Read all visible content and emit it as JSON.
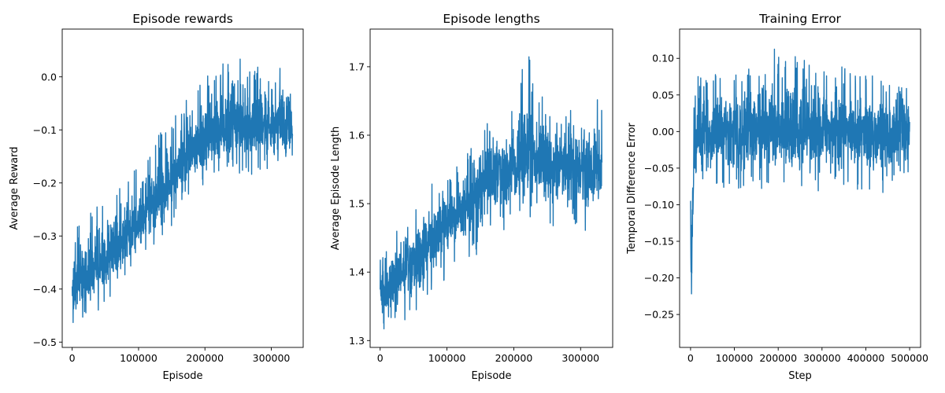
{
  "chart_data": [
    {
      "type": "line",
      "title": "Episode rewards",
      "xlabel": "Episode",
      "ylabel": "Average Reward",
      "xlim": [
        -15000,
        348000
      ],
      "ylim": [
        -0.51,
        0.09
      ],
      "xticks": [
        0,
        100000,
        200000,
        300000
      ],
      "xtick_labels": [
        "0",
        "100000",
        "200000",
        "300000"
      ],
      "yticks": [
        -0.5,
        -0.4,
        -0.3,
        -0.2,
        -0.1,
        0.0
      ],
      "ytick_labels": [
        "−0.5",
        "−0.4",
        "−0.3",
        "−0.2",
        "−0.1",
        "0.0"
      ],
      "grid": false,
      "color": "#1f77b4",
      "series": [
        {
          "x": [
            0,
            10000,
            20000,
            30000,
            40000,
            50000,
            60000,
            70000,
            80000,
            90000,
            100000,
            110000,
            120000,
            130000,
            140000,
            150000,
            160000,
            170000,
            180000,
            190000,
            200000,
            210000,
            220000,
            230000,
            240000,
            250000,
            260000,
            270000,
            280000,
            290000,
            300000,
            310000,
            320000,
            332000
          ],
          "y": [
            -0.4,
            -0.39,
            -0.38,
            -0.37,
            -0.36,
            -0.35,
            -0.33,
            -0.32,
            -0.3,
            -0.29,
            -0.28,
            -0.26,
            -0.24,
            -0.23,
            -0.21,
            -0.19,
            -0.17,
            -0.15,
            -0.14,
            -0.13,
            -0.12,
            -0.11,
            -0.1,
            -0.1,
            -0.1,
            -0.09,
            -0.09,
            -0.09,
            -0.09,
            -0.09,
            -0.09,
            -0.09,
            -0.09,
            -0.09
          ],
          "y_low": [
            -0.48,
            -0.47,
            -0.46,
            -0.45,
            -0.44,
            -0.43,
            -0.42,
            -0.41,
            -0.39,
            -0.38,
            -0.36,
            -0.34,
            -0.33,
            -0.31,
            -0.3,
            -0.28,
            -0.26,
            -0.25,
            -0.23,
            -0.22,
            -0.21,
            -0.2,
            -0.2,
            -0.2,
            -0.19,
            -0.19,
            -0.19,
            -0.19,
            -0.19,
            -0.19,
            -0.19,
            -0.19,
            -0.19,
            -0.19
          ],
          "y_high": [
            -0.29,
            -0.28,
            -0.27,
            -0.25,
            -0.24,
            -0.23,
            -0.22,
            -0.2,
            -0.19,
            -0.18,
            -0.17,
            -0.15,
            -0.13,
            -0.11,
            -0.09,
            -0.08,
            -0.06,
            -0.04,
            -0.02,
            -0.01,
            0.0,
            0.01,
            0.02,
            0.03,
            0.05,
            0.07,
            0.03,
            0.02,
            0.02,
            0.02,
            0.03,
            0.04,
            0.02,
            0.01
          ]
        }
      ]
    },
    {
      "type": "line",
      "title": "Episode lengths",
      "xlabel": "Episode",
      "ylabel": "Average Episode Length",
      "xlim": [
        -15000,
        348000
      ],
      "ylim": [
        1.29,
        1.755
      ],
      "xticks": [
        0,
        100000,
        200000,
        300000
      ],
      "xtick_labels": [
        "0",
        "100000",
        "200000",
        "300000"
      ],
      "yticks": [
        1.3,
        1.4,
        1.5,
        1.6,
        1.7
      ],
      "ytick_labels": [
        "1.3",
        "1.4",
        "1.5",
        "1.6",
        "1.7"
      ],
      "grid": false,
      "color": "#1f77b4",
      "series": [
        {
          "x": [
            0,
            10000,
            20000,
            30000,
            40000,
            50000,
            60000,
            70000,
            80000,
            90000,
            100000,
            110000,
            120000,
            130000,
            140000,
            150000,
            160000,
            170000,
            180000,
            190000,
            200000,
            210000,
            220000,
            230000,
            240000,
            250000,
            260000,
            270000,
            280000,
            290000,
            300000,
            310000,
            320000,
            332000
          ],
          "y": [
            1.37,
            1.38,
            1.39,
            1.4,
            1.41,
            1.42,
            1.43,
            1.44,
            1.45,
            1.46,
            1.47,
            1.48,
            1.49,
            1.5,
            1.51,
            1.52,
            1.53,
            1.54,
            1.55,
            1.55,
            1.56,
            1.56,
            1.57,
            1.57,
            1.56,
            1.56,
            1.55,
            1.55,
            1.55,
            1.55,
            1.55,
            1.55,
            1.55,
            1.55
          ],
          "y_low": [
            1.31,
            1.32,
            1.32,
            1.33,
            1.33,
            1.34,
            1.35,
            1.36,
            1.37,
            1.38,
            1.38,
            1.39,
            1.4,
            1.41,
            1.42,
            1.43,
            1.44,
            1.45,
            1.46,
            1.46,
            1.47,
            1.48,
            1.48,
            1.48,
            1.47,
            1.47,
            1.46,
            1.46,
            1.46,
            1.46,
            1.46,
            1.46,
            1.46,
            1.47
          ],
          "y_high": [
            1.43,
            1.44,
            1.45,
            1.47,
            1.48,
            1.5,
            1.51,
            1.53,
            1.53,
            1.53,
            1.54,
            1.55,
            1.56,
            1.58,
            1.6,
            1.61,
            1.62,
            1.63,
            1.64,
            1.65,
            1.66,
            1.7,
            1.73,
            1.7,
            1.66,
            1.65,
            1.64,
            1.63,
            1.65,
            1.64,
            1.64,
            1.66,
            1.68,
            1.64
          ]
        }
      ]
    },
    {
      "type": "line",
      "title": "Training Error",
      "xlabel": "Step",
      "ylabel": "Temporal Difference Error",
      "xlim": [
        -25000,
        525000
      ],
      "ylim": [
        -0.295,
        0.14
      ],
      "xticks": [
        0,
        100000,
        200000,
        300000,
        400000,
        500000
      ],
      "xtick_labels": [
        "0",
        "100000",
        "200000",
        "300000",
        "400000",
        "500000"
      ],
      "yticks": [
        -0.25,
        -0.2,
        -0.15,
        -0.1,
        -0.05,
        0.0,
        0.05,
        0.1
      ],
      "ytick_labels": [
        "−0.25",
        "−0.20",
        "−0.15",
        "−0.10",
        "−0.05",
        "0.00",
        "0.05",
        "0.10"
      ],
      "grid": false,
      "color": "#1f77b4",
      "series": [
        {
          "x": [
            0,
            2000,
            5000,
            10000,
            20000,
            40000,
            60000,
            80000,
            100000,
            150000,
            200000,
            250000,
            300000,
            350000,
            400000,
            450000,
            500000
          ],
          "y": [
            -0.1,
            -0.2,
            -0.1,
            -0.02,
            0.0,
            0.0,
            0.0,
            0.0,
            0.0,
            0.0,
            0.0,
            0.0,
            0.0,
            0.0,
            0.0,
            0.0,
            0.0
          ],
          "y_low": [
            -0.27,
            -0.275,
            -0.14,
            -0.1,
            -0.09,
            -0.08,
            -0.08,
            -0.08,
            -0.08,
            -0.08,
            -0.08,
            -0.08,
            -0.09,
            -0.08,
            -0.08,
            -0.09,
            -0.06
          ],
          "y_high": [
            -0.05,
            -0.08,
            0.02,
            0.07,
            0.08,
            0.08,
            0.08,
            0.08,
            0.09,
            0.09,
            0.12,
            0.1,
            0.1,
            0.09,
            0.08,
            0.08,
            0.06
          ]
        }
      ]
    }
  ]
}
